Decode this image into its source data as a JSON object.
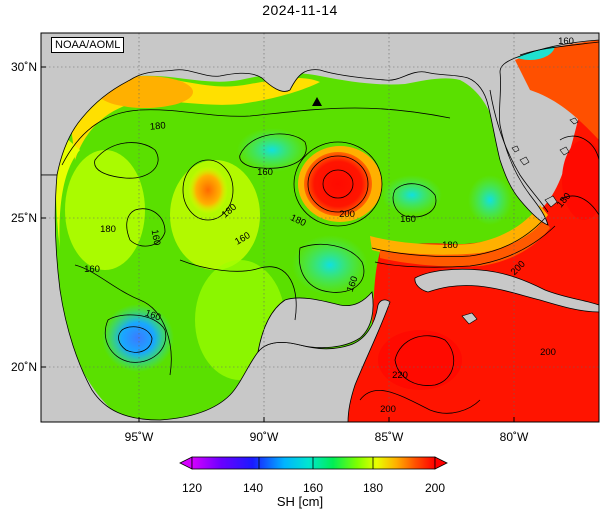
{
  "title": "2024-11-14",
  "credit": "NOAA/AOML",
  "lat_labels": [
    "30˚N",
    "25˚N",
    "20˚N"
  ],
  "lon_labels": [
    "95˚W",
    "90˚W",
    "85˚W",
    "80˚W"
  ],
  "contour_labels": [
    "180",
    "160",
    "160",
    "180",
    "200",
    "180",
    "160",
    "180",
    "160",
    "160",
    "160",
    "160",
    "160",
    "180",
    "200",
    "180",
    "200",
    "220",
    "200"
  ],
  "colorbar": {
    "label": "SH [cm]",
    "ticks": [
      "120",
      "140",
      "160",
      "180",
      "200"
    ],
    "stops": [
      "#d600ff",
      "#6a00ff",
      "#1a1aff",
      "#00b4ff",
      "#00e6d0",
      "#00ee55",
      "#7fff00",
      "#e8ff00",
      "#ffb000",
      "#ff5000",
      "#ff0000"
    ]
  },
  "colors": {
    "land": "#c8c8c8",
    "high_sh": "#ff1a00",
    "mid_sh": "#55e000",
    "low_sh": "#1eb4ff"
  },
  "marker": "platform-triangle"
}
